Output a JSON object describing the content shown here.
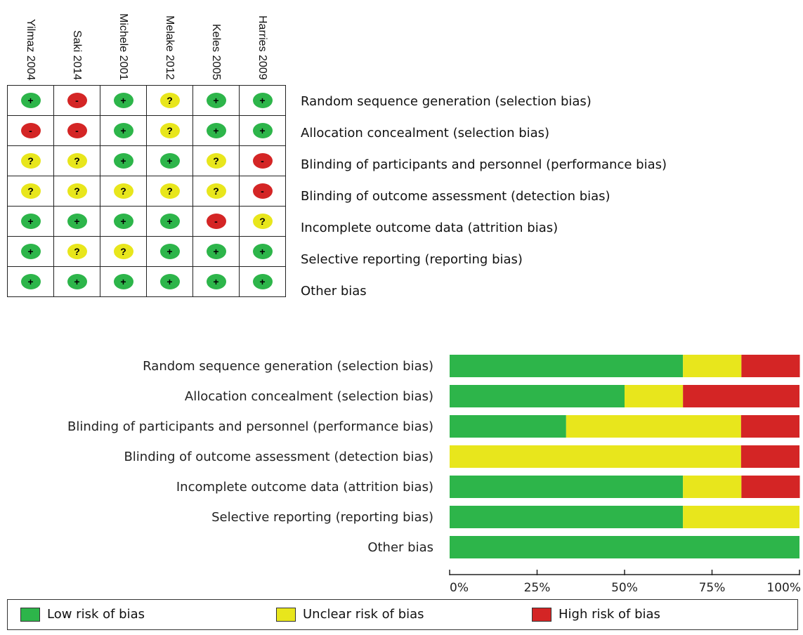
{
  "chart_data": [
    {
      "type": "table",
      "studies": [
        "Yilmaz 2004",
        "Saki 2014",
        "Michele 2001",
        "Melake 2012",
        "Keles 2005",
        "Harries 2009"
      ],
      "domains": [
        "Random sequence generation (selection bias)",
        "Allocation concealment (selection bias)",
        "Blinding of participants and personnel (performance bias)",
        "Blinding of outcome assessment (detection bias)",
        "Incomplete outcome data (attrition bias)",
        "Selective reporting (reporting bias)",
        "Other bias"
      ],
      "judgements": [
        [
          "+",
          "-",
          "+",
          "?",
          "+",
          "+"
        ],
        [
          "-",
          "-",
          "+",
          "?",
          "+",
          "+"
        ],
        [
          "?",
          "?",
          "+",
          "+",
          "?",
          "-"
        ],
        [
          "?",
          "?",
          "?",
          "?",
          "?",
          "-"
        ],
        [
          "+",
          "+",
          "+",
          "+",
          "-",
          "?"
        ],
        [
          "+",
          "?",
          "?",
          "+",
          "+",
          "+"
        ],
        [
          "+",
          "+",
          "+",
          "+",
          "+",
          "+"
        ]
      ]
    },
    {
      "type": "bar",
      "orientation": "horizontal",
      "stacked": true,
      "categories": [
        "Random sequence generation (selection bias)",
        "Allocation concealment (selection bias)",
        "Blinding of participants and personnel (performance bias)",
        "Blinding of outcome assessment (detection bias)",
        "Incomplete outcome data (attrition bias)",
        "Selective reporting (reporting bias)",
        "Other bias"
      ],
      "series": [
        {
          "name": "Low risk of bias",
          "values": [
            66.7,
            50,
            33.3,
            0,
            66.7,
            66.7,
            100
          ]
        },
        {
          "name": "Unclear risk of bias",
          "values": [
            16.7,
            16.7,
            50,
            83.3,
            16.7,
            33.3,
            0
          ]
        },
        {
          "name": "High risk of bias",
          "values": [
            16.7,
            33.3,
            16.7,
            16.7,
            16.7,
            0,
            0
          ]
        }
      ],
      "xlim": [
        0,
        100
      ],
      "xticks": [
        "0%",
        "25%",
        "50%",
        "75%",
        "100%"
      ],
      "legend_position": "bottom"
    }
  ],
  "colors": {
    "low": "#2db54a",
    "unclear": "#e8e61c",
    "high": "#d42525"
  },
  "legend": {
    "low": "Low risk of bias",
    "unclear": "Unclear risk of bias",
    "high": "High risk of bias"
  }
}
